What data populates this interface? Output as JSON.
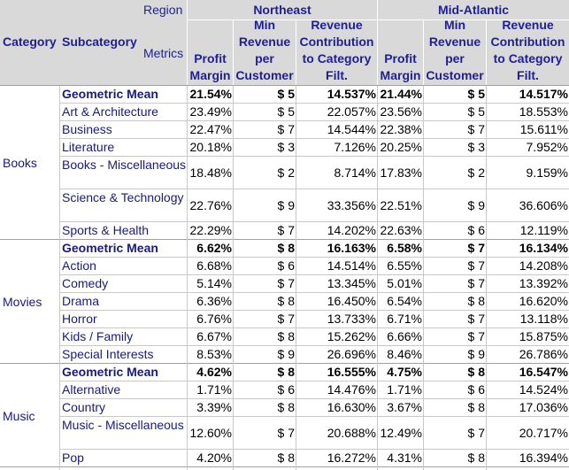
{
  "header": {
    "region_label": "Region",
    "metrics_label": "Metrics",
    "category_label": "Category",
    "subcategory_label": "Subcategory",
    "regions": [
      "Northeast",
      "Mid-Atlantic"
    ],
    "metrics": [
      "Profit Margin",
      "Min Revenue per Customer",
      "Revenue Contribution to Category Filt."
    ]
  },
  "groups": [
    {
      "category": "Books",
      "rows": [
        {
          "sub": "Geometric Mean",
          "bold": true,
          "v": [
            "21.54%",
            "$ 5",
            "14.537%",
            "21.44%",
            "$ 5",
            "14.517%"
          ]
        },
        {
          "sub": "Art & Architecture",
          "v": [
            "23.49%",
            "$ 5",
            "22.057%",
            "23.56%",
            "$ 5",
            "18.553%"
          ]
        },
        {
          "sub": "Business",
          "v": [
            "22.47%",
            "$ 7",
            "14.544%",
            "22.38%",
            "$ 7",
            "15.611%"
          ]
        },
        {
          "sub": "Literature",
          "v": [
            "20.18%",
            "$ 3",
            "7.126%",
            "20.25%",
            "$ 3",
            "7.952%"
          ]
        },
        {
          "sub": "Books - Miscellaneous",
          "v": [
            "18.48%",
            "$ 2",
            "8.714%",
            "17.83%",
            "$ 2",
            "9.159%"
          ]
        },
        {
          "sub": "Science & Technology",
          "v": [
            "22.76%",
            "$ 9",
            "33.356%",
            "22.51%",
            "$ 9",
            "36.606%"
          ]
        },
        {
          "sub": "Sports & Health",
          "v": [
            "22.29%",
            "$ 7",
            "14.202%",
            "22.63%",
            "$ 6",
            "12.119%"
          ]
        }
      ]
    },
    {
      "category": "Movies",
      "rows": [
        {
          "sub": "Geometric Mean",
          "bold": true,
          "v": [
            "6.62%",
            "$ 8",
            "16.163%",
            "6.58%",
            "$ 7",
            "16.134%"
          ]
        },
        {
          "sub": "Action",
          "v": [
            "6.68%",
            "$ 6",
            "14.514%",
            "6.55%",
            "$ 7",
            "14.208%"
          ]
        },
        {
          "sub": "Comedy",
          "v": [
            "5.14%",
            "$ 7",
            "13.345%",
            "5.01%",
            "$ 7",
            "13.392%"
          ]
        },
        {
          "sub": "Drama",
          "v": [
            "6.36%",
            "$ 8",
            "16.450%",
            "6.54%",
            "$ 8",
            "16.620%"
          ]
        },
        {
          "sub": "Horror",
          "v": [
            "6.76%",
            "$ 7",
            "13.733%",
            "6.71%",
            "$ 7",
            "13.118%"
          ]
        },
        {
          "sub": "Kids / Family",
          "v": [
            "6.67%",
            "$ 8",
            "15.262%",
            "6.66%",
            "$ 7",
            "15.875%"
          ]
        },
        {
          "sub": "Special Interests",
          "v": [
            "8.53%",
            "$ 9",
            "26.696%",
            "8.46%",
            "$ 9",
            "26.786%"
          ]
        }
      ]
    },
    {
      "category": "Music",
      "rows": [
        {
          "sub": "Geometric Mean",
          "bold": true,
          "v": [
            "4.62%",
            "$ 8",
            "16.555%",
            "4.75%",
            "$ 8",
            "16.547%"
          ]
        },
        {
          "sub": "Alternative",
          "v": [
            "1.71%",
            "$ 6",
            "14.476%",
            "1.71%",
            "$ 6",
            "14.524%"
          ]
        },
        {
          "sub": "Country",
          "v": [
            "3.39%",
            "$ 8",
            "16.630%",
            "3.67%",
            "$ 8",
            "17.036%"
          ]
        },
        {
          "sub": "Music - Miscellaneous",
          "v": [
            "12.60%",
            "$ 7",
            "20.688%",
            "12.49%",
            "$ 7",
            "20.717%"
          ]
        },
        {
          "sub": "Pop",
          "v": [
            "4.20%",
            "$ 8",
            "16.272%",
            "4.31%",
            "$ 8",
            "16.394%"
          ]
        }
      ]
    }
  ]
}
